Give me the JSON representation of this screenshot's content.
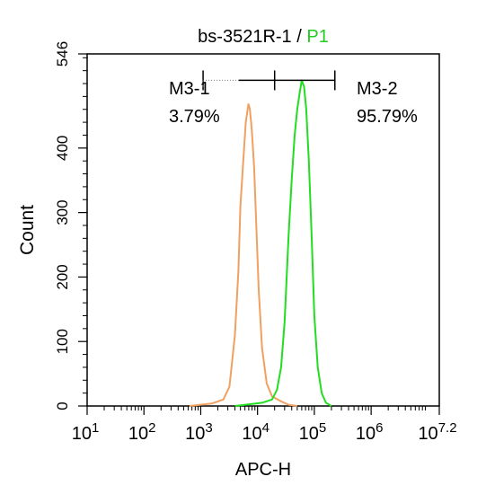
{
  "chart_data": {
    "type": "line",
    "title": {
      "sample": "bs-3521R-1",
      "separator": " / ",
      "gate": "P1",
      "gate_color": "#22cc22"
    },
    "xlabel": "APC-H",
    "ylabel": "Count",
    "x_scale": "log",
    "xlim": [
      10,
      15848932
    ],
    "ylim": [
      0,
      546
    ],
    "x_ticks": [
      {
        "value": 10,
        "base": "10",
        "exp": "1"
      },
      {
        "value": 100,
        "base": "10",
        "exp": "2"
      },
      {
        "value": 1000,
        "base": "10",
        "exp": "3"
      },
      {
        "value": 10000,
        "base": "10",
        "exp": "4"
      },
      {
        "value": 100000,
        "base": "10",
        "exp": "5"
      },
      {
        "value": 1000000,
        "base": "10",
        "exp": "6"
      },
      {
        "value": 15848932,
        "base": "10",
        "exp": "7.2"
      }
    ],
    "y_ticks": [
      0,
      100,
      200,
      300,
      400,
      546
    ],
    "series": [
      {
        "color": "#f0a060",
        "x": [
          630,
          1000,
          1600,
          2500,
          3200,
          4000,
          4600,
          5000,
          5600,
          6200,
          6900,
          7300,
          7900,
          8700,
          9500,
          10500,
          12000,
          14500,
          18000,
          25000,
          35000,
          50000
        ],
        "y": [
          0,
          2,
          4,
          10,
          30,
          110,
          210,
          310,
          380,
          440,
          468,
          462,
          430,
          370,
          280,
          180,
          90,
          35,
          15,
          8,
          2,
          0
        ]
      },
      {
        "color": "#22dd22",
        "x": [
          4000,
          8000,
          12000,
          18000,
          22000,
          26000,
          30000,
          35000,
          40000,
          45000,
          50000,
          55000,
          60000,
          66000,
          72000,
          80000,
          90000,
          100000,
          115000,
          135000,
          160000,
          200000
        ],
        "y": [
          0,
          3,
          5,
          10,
          25,
          60,
          130,
          260,
          350,
          420,
          460,
          485,
          505,
          495,
          460,
          380,
          260,
          140,
          60,
          20,
          5,
          0
        ]
      }
    ],
    "markers": [
      {
        "name": "M3-1",
        "percent": "3.79%",
        "x_start": 1100,
        "x_end": 20000
      },
      {
        "name": "M3-2",
        "percent": "95.79%",
        "x_start": 20000,
        "x_end": 230000
      }
    ],
    "marker_y": 505,
    "grid": false,
    "legend": "none"
  }
}
